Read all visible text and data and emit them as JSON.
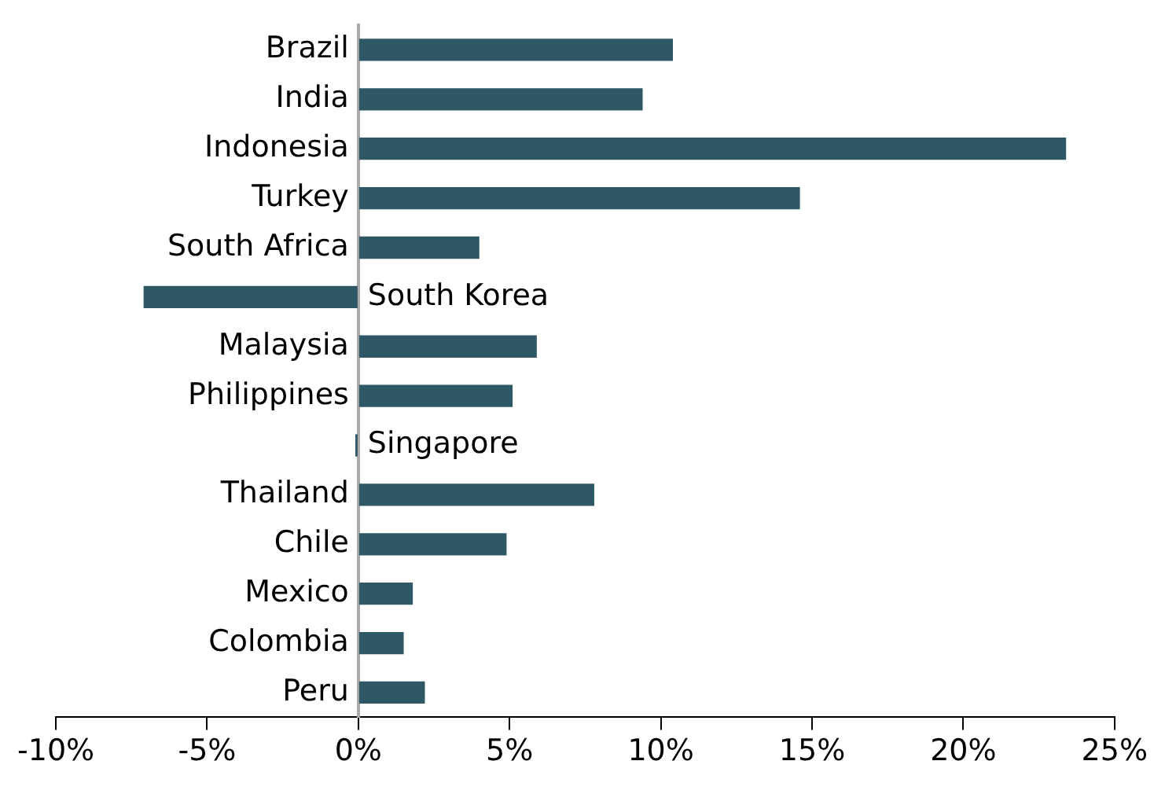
{
  "chart_data": {
    "type": "bar",
    "orientation": "horizontal",
    "categories": [
      "Brazil",
      "India",
      "Indonesia",
      "Turkey",
      "South Africa",
      "South Korea",
      "Malaysia",
      "Philippines",
      "Singapore",
      "Thailand",
      "Chile",
      "Mexico",
      "Colombia",
      "Peru"
    ],
    "values": [
      10.4,
      9.4,
      23.4,
      14.6,
      4.0,
      -7.1,
      5.9,
      5.1,
      -0.1,
      7.8,
      4.9,
      1.8,
      1.5,
      2.2
    ],
    "color": "#2e5866",
    "xlim": [
      -10,
      25
    ],
    "xticks": [
      {
        "value": -10,
        "label": "-10%"
      },
      {
        "value": -5,
        "label": "-5%"
      },
      {
        "value": 0,
        "label": "0%"
      },
      {
        "value": 5,
        "label": "5%"
      },
      {
        "value": 10,
        "label": "10%"
      },
      {
        "value": 15,
        "label": "15%"
      },
      {
        "value": 20,
        "label": "20%"
      },
      {
        "value": 25,
        "label": "25%"
      }
    ],
    "grid": false,
    "legend": false
  }
}
